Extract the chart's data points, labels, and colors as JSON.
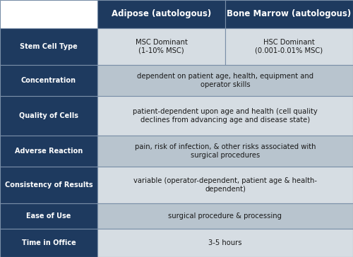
{
  "header_bg": "#1e3a5f",
  "header_text_color": "#ffffff",
  "row_label_bg": "#1e3a5f",
  "row_label_text_color": "#ffffff",
  "row_even_bg": "#b8c4ce",
  "row_odd_bg": "#d6dde3",
  "cell_text_color": "#1a1a1a",
  "border_color": "#7a8fa8",
  "col_headers": [
    "Adipose (autologous)",
    "Bone Marrow (autologous)"
  ],
  "row_labels": [
    "Stem Cell Type",
    "Concentration",
    "Quality of Cells",
    "Adverse Reaction",
    "Consistency of Results",
    "Ease of Use",
    "Time in Office"
  ],
  "rows": [
    [
      "MSC Dominant\n(1-10% MSC)",
      "HSC Dominant\n(0.001-0.01% MSC)"
    ],
    [
      "dependent on patient age, health, equipment and\noperator skills",
      null
    ],
    [
      "patient-dependent upon age and health (cell quality\ndeclines from advancing age and disease state)",
      null
    ],
    [
      "pain, risk of infection, & other risks associated with\nsurgical procedures",
      null
    ],
    [
      "variable (operator-dependent, patient age & health-\ndependent)",
      null
    ],
    [
      "surgical procedure & processing",
      null
    ],
    [
      "3-5 hours",
      null
    ]
  ],
  "merged_rows": [
    1,
    2,
    3,
    4,
    5,
    6
  ],
  "fig_width": 5.0,
  "fig_height": 3.64,
  "dpi": 100
}
